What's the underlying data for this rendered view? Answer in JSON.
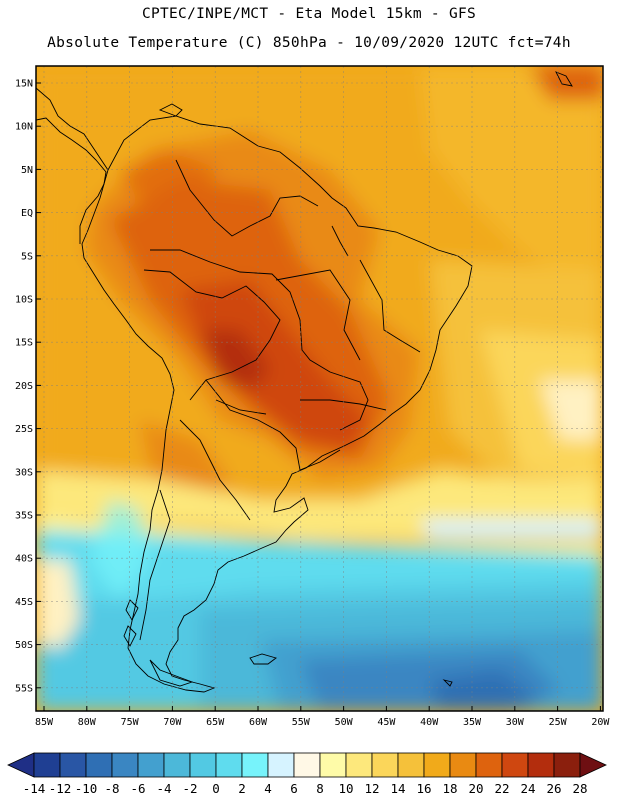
{
  "header": {
    "line1": "CPTEC/INPE/MCT -  Eta Model 15km - GFS",
    "line2": "Absolute Temperature (C) 850hPa - 10/09/2020 12UTC fct=74h"
  },
  "map": {
    "lat_labels": [
      "15N",
      "10N",
      "5N",
      "EQ",
      "5S",
      "10S",
      "15S",
      "20S",
      "25S",
      "30S",
      "35S",
      "40S",
      "45S",
      "50S",
      "55S"
    ],
    "lon_labels": [
      "85W",
      "80W",
      "75W",
      "70W",
      "65W",
      "60W",
      "55W",
      "50W",
      "45W",
      "40W",
      "35W",
      "30W",
      "25W",
      "20W"
    ]
  },
  "colorbar": {
    "labels": [
      "-14",
      "-12",
      "-10",
      "-8",
      "-6",
      "-4",
      "-2",
      "0",
      "2",
      "4",
      "6",
      "8",
      "10",
      "12",
      "14",
      "16",
      "18",
      "20",
      "22",
      "24",
      "26",
      "28"
    ],
    "colors": [
      "#1f3f93",
      "#2956a5",
      "#2f6fb4",
      "#3a86c2",
      "#43a0cf",
      "#4cb8d9",
      "#52c9e3",
      "#5fdcee",
      "#77f3fb",
      "#d6f3ff",
      "#fff8e6",
      "#fefba8",
      "#fde87c",
      "#fbd65a",
      "#f5c13a",
      "#f1aa1a",
      "#e98a12",
      "#de630e",
      "#cf4710",
      "#b32d0d",
      "#8b1f0d"
    ],
    "under_color": "#1f2f86",
    "over_color": "#6e0f12"
  }
}
